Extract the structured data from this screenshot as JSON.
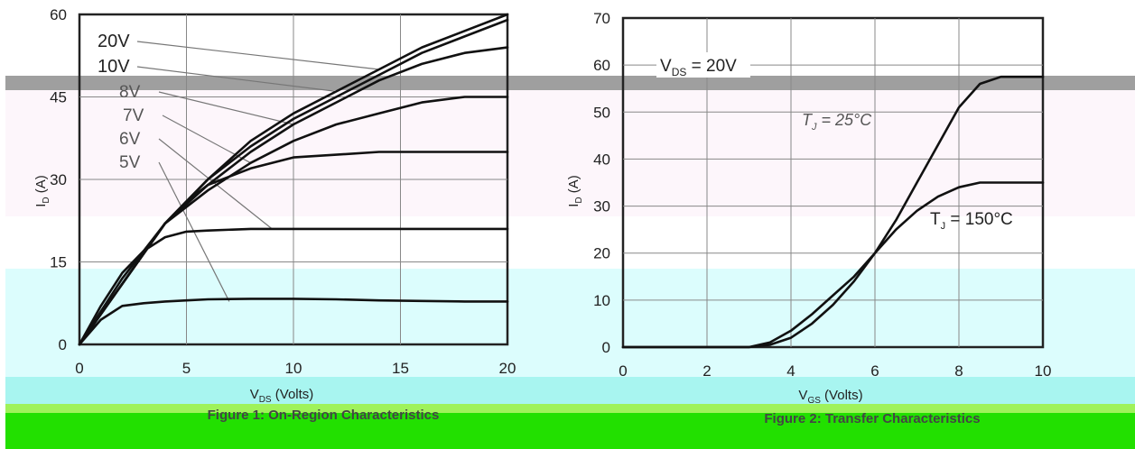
{
  "chart_data": [
    {
      "type": "line",
      "caption": "Figure 1: On-Region Characteristics",
      "xlabel": "V(DS) (Volts)",
      "ylabel": "I(D) (A)",
      "xlim": [
        0,
        20
      ],
      "ylim": [
        0,
        60
      ],
      "xticks": [
        "0",
        "5",
        "10",
        "15",
        "20"
      ],
      "yticks": [
        "0",
        "15",
        "30",
        "45",
        "60"
      ],
      "grid": true,
      "series": [
        {
          "name": "20V",
          "x": [
            0,
            2,
            4,
            6,
            8,
            10,
            12,
            14,
            16,
            18,
            20
          ],
          "y": [
            0,
            11,
            22,
            30,
            37,
            42,
            46,
            50,
            54,
            57,
            60
          ]
        },
        {
          "name": "10V",
          "x": [
            0,
            2,
            4,
            6,
            8,
            10,
            12,
            14,
            16,
            18,
            20
          ],
          "y": [
            0,
            11,
            22,
            30,
            36,
            41,
            45,
            49,
            53,
            56,
            59
          ]
        },
        {
          "name": "8V",
          "x": [
            0,
            2,
            4,
            6,
            8,
            10,
            12,
            14,
            16,
            18,
            20
          ],
          "y": [
            0,
            11,
            22,
            29,
            35,
            40,
            44,
            48,
            51,
            53,
            54
          ]
        },
        {
          "name": "7V",
          "x": [
            0,
            2,
            4,
            6,
            8,
            10,
            12,
            14,
            16,
            18,
            20
          ],
          "y": [
            0,
            11,
            22,
            28,
            33,
            37,
            40,
            42,
            44,
            45,
            45
          ]
        },
        {
          "name": "6V",
          "x": [
            0,
            2,
            4,
            5,
            6,
            8,
            10,
            12,
            14,
            16,
            18,
            20
          ],
          "y": [
            0,
            12,
            22,
            26,
            29,
            32,
            34,
            34.5,
            35,
            35,
            35,
            35
          ]
        },
        {
          "name": "5V",
          "x": [
            0,
            1,
            2,
            3,
            4,
            5,
            6,
            8,
            10,
            12,
            14,
            16,
            18,
            20
          ],
          "y": [
            0,
            7,
            13,
            17,
            19.5,
            20.5,
            20.7,
            21,
            21,
            21,
            21,
            21,
            21,
            21
          ]
        },
        {
          "name": "",
          "x": [
            0,
            1,
            2,
            3,
            4,
            5,
            6,
            8,
            10,
            12,
            14,
            16,
            18,
            20
          ],
          "y": [
            0,
            4.5,
            7,
            7.5,
            7.8,
            8,
            8.2,
            8.3,
            8.3,
            8.2,
            8,
            7.9,
            7.8,
            7.8
          ]
        }
      ],
      "annotations": [
        {
          "text": "20V",
          "series": "20V"
        },
        {
          "text": "10V",
          "series": "10V"
        },
        {
          "text": "8V",
          "series": "8V"
        },
        {
          "text": "7V",
          "series": "7V"
        },
        {
          "text": "6V",
          "series": "6V"
        },
        {
          "text": "5V",
          "series": "5V"
        }
      ]
    },
    {
      "type": "line",
      "caption": "Figure 2: Transfer Characteristics",
      "xlabel": "V(GS) (Volts)",
      "ylabel": "I(D) (A)",
      "xlim": [
        0,
        10
      ],
      "ylim": [
        0,
        70
      ],
      "xticks": [
        "0",
        "2",
        "4",
        "6",
        "8",
        "10"
      ],
      "yticks": [
        "0",
        "10",
        "20",
        "30",
        "40",
        "50",
        "60",
        "70"
      ],
      "grid": true,
      "condition": "V(DS) = 20V",
      "series": [
        {
          "name": "T(J) = 25°C",
          "x": [
            0,
            3,
            3.5,
            4,
            4.5,
            5,
            5.5,
            6,
            6.5,
            7,
            7.5,
            8,
            8.5,
            9,
            10
          ],
          "y": [
            0,
            0,
            0.5,
            2,
            5,
            9,
            14,
            20,
            27,
            35,
            43,
            51,
            56,
            57.5,
            57.5
          ]
        },
        {
          "name": "T(J) = 150°C",
          "x": [
            0,
            3,
            3.5,
            4,
            4.5,
            5,
            5.5,
            6,
            6.5,
            7,
            7.5,
            8,
            8.5,
            9,
            10
          ],
          "y": [
            0,
            0,
            1,
            3.5,
            7,
            11,
            15,
            20,
            25,
            29,
            32,
            34,
            35,
            35,
            35
          ]
        }
      ],
      "annotations": [
        {
          "text": "T(J) = 25°C"
        },
        {
          "text": "T(J) = 150°C"
        }
      ]
    }
  ]
}
